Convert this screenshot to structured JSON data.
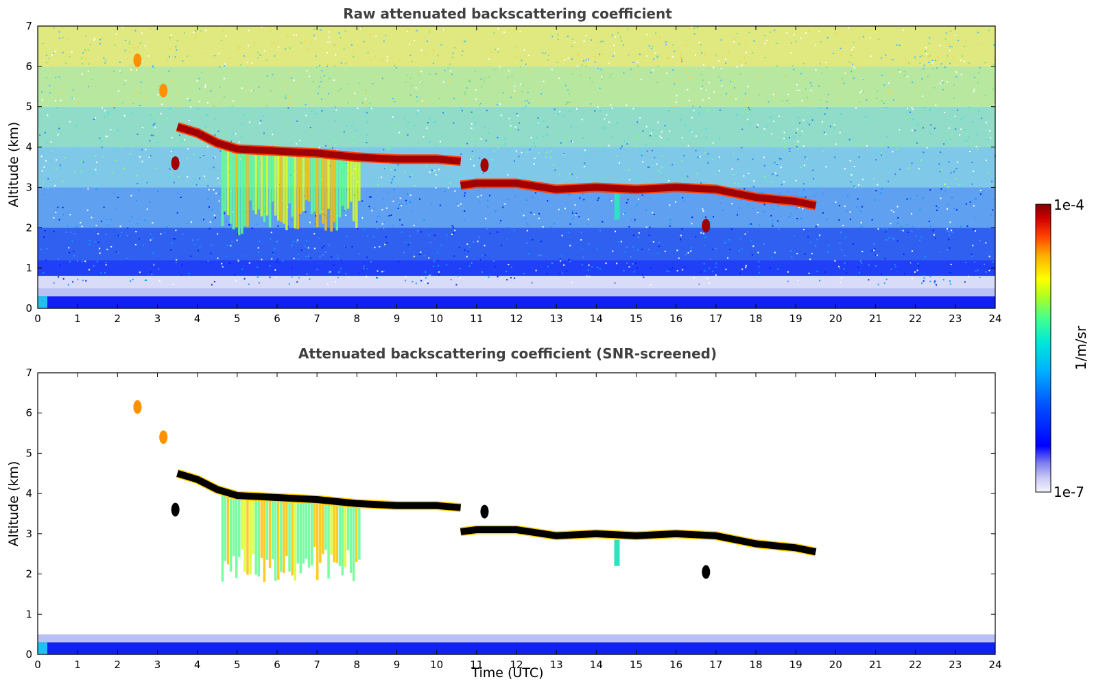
{
  "chart_data": [
    {
      "type": "heatmap",
      "title": "Raw attenuated backscattering coefficient",
      "xlabel": "",
      "ylabel": "Altitude (km)",
      "xlim": [
        0,
        24
      ],
      "ylim": [
        0,
        7
      ],
      "xticks": [
        "0",
        "1",
        "2",
        "3",
        "4",
        "5",
        "6",
        "7",
        "8",
        "9",
        "10",
        "11",
        "12",
        "13",
        "14",
        "15",
        "16",
        "17",
        "18",
        "19",
        "20",
        "21",
        "22",
        "23",
        "24"
      ],
      "yticks": [
        "0",
        "1",
        "2",
        "3",
        "4",
        "5",
        "6",
        "7"
      ],
      "screened": false,
      "cloud_layers": [
        {
          "x": [
            3.5,
            4.0,
            4.5,
            5.0,
            6.0,
            7.0,
            8.0,
            9.0,
            10.0,
            10.6
          ],
          "y": [
            4.5,
            4.35,
            4.1,
            3.95,
            3.9,
            3.85,
            3.75,
            3.7,
            3.7,
            3.65
          ]
        },
        {
          "x": [
            10.6,
            11.0,
            12.0,
            13.0,
            14.0,
            15.0,
            16.0,
            17.0,
            18.0,
            19.0,
            19.5
          ],
          "y": [
            3.05,
            3.1,
            3.1,
            2.95,
            3.0,
            2.95,
            3.0,
            2.95,
            2.75,
            2.65,
            2.55
          ]
        }
      ],
      "patches": [
        {
          "x": 2.5,
          "y": 6.15
        },
        {
          "x": 3.15,
          "y": 5.4
        },
        {
          "x": 3.45,
          "y": 3.6
        },
        {
          "x": 11.2,
          "y": 3.55
        },
        {
          "x": 16.75,
          "y": 2.05
        }
      ]
    },
    {
      "type": "heatmap",
      "title": "Attenuated backscattering coefficient (SNR-screened)",
      "xlabel": "Time (UTC)",
      "ylabel": "Altitude (km)",
      "xlim": [
        0,
        24
      ],
      "ylim": [
        0,
        7
      ],
      "xticks": [
        "0",
        "1",
        "2",
        "3",
        "4",
        "5",
        "6",
        "7",
        "8",
        "9",
        "10",
        "11",
        "12",
        "13",
        "14",
        "15",
        "16",
        "17",
        "18",
        "19",
        "20",
        "21",
        "22",
        "23",
        "24"
      ],
      "yticks": [
        "0",
        "1",
        "2",
        "3",
        "4",
        "5",
        "6",
        "7"
      ],
      "screened": true,
      "cloud_layers": [
        {
          "x": [
            3.5,
            4.0,
            4.5,
            5.0,
            6.0,
            7.0,
            8.0,
            9.0,
            10.0,
            10.6
          ],
          "y": [
            4.5,
            4.35,
            4.1,
            3.95,
            3.9,
            3.85,
            3.75,
            3.7,
            3.7,
            3.65
          ]
        },
        {
          "x": [
            10.6,
            11.0,
            12.0,
            13.0,
            14.0,
            15.0,
            16.0,
            17.0,
            18.0,
            19.0,
            19.5
          ],
          "y": [
            3.05,
            3.1,
            3.1,
            2.95,
            3.0,
            2.95,
            3.0,
            2.95,
            2.75,
            2.65,
            2.55
          ]
        }
      ],
      "patches": [
        {
          "x": 2.5,
          "y": 6.15
        },
        {
          "x": 3.15,
          "y": 5.4
        },
        {
          "x": 3.45,
          "y": 3.6
        },
        {
          "x": 11.2,
          "y": 3.55
        },
        {
          "x": 16.75,
          "y": 2.05
        }
      ]
    }
  ],
  "colorbar": {
    "label": "1/m/sr",
    "max_label": "1e-4",
    "min_label": "1e-7",
    "colormap": [
      "#f0f0fa",
      "#d0d0f0",
      "#9090ee",
      "#0000ff",
      "#0060ff",
      "#00b0ff",
      "#00e0e0",
      "#40ff80",
      "#c0ff00",
      "#ffff00",
      "#ffc000",
      "#ff6000",
      "#ff0000",
      "#c00000",
      "#800000"
    ]
  }
}
